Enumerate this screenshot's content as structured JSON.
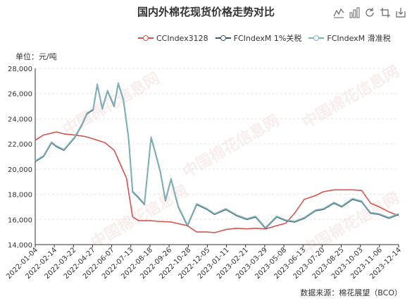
{
  "title": "国内外棉花现货价格走势对比",
  "unit_label": "单位：元/吨",
  "source_label": "数据来源：棉花展望（BCO）",
  "watermark_text": "中国棉花信息网",
  "toolbar": {
    "icons": [
      "line-chart-icon",
      "bar-chart-icon",
      "refresh-icon",
      "restore-icon",
      "save-image-icon"
    ]
  },
  "chart_data": {
    "type": "line",
    "title": "国内外棉花现货价格走势对比",
    "ylabel": "单位：元/吨",
    "ylim": [
      14000,
      28000
    ],
    "yticks": [
      14000,
      16000,
      18000,
      20000,
      22000,
      24000,
      26000,
      28000
    ],
    "ytick_labels": [
      "14,000",
      "16,000",
      "18,000",
      "20,000",
      "22,000",
      "24,000",
      "26,000",
      "28,000"
    ],
    "xlim": [
      "2022-01-04",
      "2023-12-14"
    ],
    "xtick_labels": [
      "2022-01-04",
      "2022-02-14",
      "2022-03-22",
      "2022-04-27",
      "2022-06-07",
      "2022-07-13",
      "2022-08-18",
      "2022-09-26",
      "2022-10-28",
      "2022-12-05",
      "2023-01-11",
      "2023-02-21",
      "2023-03-29",
      "2023-05-08",
      "2023-06-13",
      "2023-07-20",
      "2023-08-25",
      "2023-10-03",
      "2023-11-06",
      "2023-12-14"
    ],
    "grid": true,
    "legend_position": "top",
    "series": [
      {
        "name": "CCIndex3128",
        "color": "#d9534f",
        "points": [
          [
            "2022-01-04",
            22300
          ],
          [
            "2022-01-20",
            22700
          ],
          [
            "2022-02-14",
            22950
          ],
          [
            "2022-03-01",
            22800
          ],
          [
            "2022-03-22",
            22700
          ],
          [
            "2022-04-10",
            22600
          ],
          [
            "2022-04-27",
            22400
          ],
          [
            "2022-05-20",
            22100
          ],
          [
            "2022-06-07",
            21500
          ],
          [
            "2022-06-20",
            20300
          ],
          [
            "2022-07-01",
            19300
          ],
          [
            "2022-07-13",
            16200
          ],
          [
            "2022-07-25",
            15900
          ],
          [
            "2022-08-18",
            15900
          ],
          [
            "2022-09-01",
            15850
          ],
          [
            "2022-09-26",
            15800
          ],
          [
            "2022-10-28",
            15500
          ],
          [
            "2022-11-15",
            15000
          ],
          [
            "2022-12-05",
            15000
          ],
          [
            "2022-12-20",
            14950
          ],
          [
            "2023-01-11",
            15200
          ],
          [
            "2023-02-01",
            15300
          ],
          [
            "2023-02-21",
            15250
          ],
          [
            "2023-03-10",
            15300
          ],
          [
            "2023-03-29",
            15250
          ],
          [
            "2023-04-20",
            15500
          ],
          [
            "2023-05-08",
            15700
          ],
          [
            "2023-05-25",
            16500
          ],
          [
            "2023-06-13",
            17600
          ],
          [
            "2023-07-05",
            17900
          ],
          [
            "2023-07-20",
            18200
          ],
          [
            "2023-08-10",
            18350
          ],
          [
            "2023-08-25",
            18350
          ],
          [
            "2023-09-15",
            18350
          ],
          [
            "2023-10-03",
            18300
          ],
          [
            "2023-10-20",
            17300
          ],
          [
            "2023-11-06",
            17000
          ],
          [
            "2023-11-25",
            16600
          ],
          [
            "2023-12-14",
            16300
          ]
        ]
      },
      {
        "name": "FCIndexM 1%关税",
        "color": "#3d5566",
        "points": [
          [
            "2022-01-04",
            20600
          ],
          [
            "2022-01-20",
            21000
          ],
          [
            "2022-02-05",
            22100
          ],
          [
            "2022-02-14",
            21800
          ],
          [
            "2022-03-01",
            21500
          ],
          [
            "2022-03-22",
            22500
          ],
          [
            "2022-04-05",
            23500
          ],
          [
            "2022-04-15",
            24400
          ],
          [
            "2022-04-27",
            24700
          ],
          [
            "2022-05-05",
            26700
          ],
          [
            "2022-05-15",
            24800
          ],
          [
            "2022-05-25",
            26200
          ],
          [
            "2022-06-07",
            25000
          ],
          [
            "2022-06-15",
            26800
          ],
          [
            "2022-06-25",
            25500
          ],
          [
            "2022-07-05",
            22500
          ],
          [
            "2022-07-13",
            18200
          ],
          [
            "2022-07-25",
            17700
          ],
          [
            "2022-08-05",
            17200
          ],
          [
            "2022-08-18",
            22500
          ],
          [
            "2022-08-25",
            21500
          ],
          [
            "2022-09-05",
            19800
          ],
          [
            "2022-09-15",
            17500
          ],
          [
            "2022-09-26",
            19200
          ],
          [
            "2022-10-10",
            17000
          ],
          [
            "2022-10-28",
            15500
          ],
          [
            "2022-11-15",
            17200
          ],
          [
            "2022-12-05",
            16800
          ],
          [
            "2022-12-20",
            16400
          ],
          [
            "2023-01-11",
            16800
          ],
          [
            "2023-02-01",
            16300
          ],
          [
            "2023-02-21",
            16000
          ],
          [
            "2023-03-10",
            16200
          ],
          [
            "2023-03-29",
            15300
          ],
          [
            "2023-04-20",
            16200
          ],
          [
            "2023-05-08",
            15900
          ],
          [
            "2023-05-25",
            15800
          ],
          [
            "2023-06-13",
            16100
          ],
          [
            "2023-07-05",
            16700
          ],
          [
            "2023-07-20",
            16800
          ],
          [
            "2023-08-10",
            17300
          ],
          [
            "2023-08-25",
            17000
          ],
          [
            "2023-09-15",
            17600
          ],
          [
            "2023-10-03",
            17400
          ],
          [
            "2023-10-20",
            16500
          ],
          [
            "2023-11-06",
            16400
          ],
          [
            "2023-11-25",
            16100
          ],
          [
            "2023-12-14",
            16400
          ]
        ]
      },
      {
        "name": "FCIndexM 滑准税",
        "color": "#7fb3bd",
        "points": [
          [
            "2022-01-04",
            20650
          ],
          [
            "2022-01-20",
            21050
          ],
          [
            "2022-02-05",
            22150
          ],
          [
            "2022-02-14",
            21850
          ],
          [
            "2022-03-01",
            21550
          ],
          [
            "2022-03-22",
            22550
          ],
          [
            "2022-04-05",
            23550
          ],
          [
            "2022-04-15",
            24450
          ],
          [
            "2022-04-27",
            24750
          ],
          [
            "2022-05-05",
            26750
          ],
          [
            "2022-05-15",
            24850
          ],
          [
            "2022-05-25",
            26250
          ],
          [
            "2022-06-07",
            25050
          ],
          [
            "2022-06-15",
            26850
          ],
          [
            "2022-06-25",
            25550
          ],
          [
            "2022-07-05",
            22550
          ],
          [
            "2022-07-13",
            18250
          ],
          [
            "2022-07-25",
            17750
          ],
          [
            "2022-08-05",
            17250
          ],
          [
            "2022-08-18",
            22550
          ],
          [
            "2022-08-25",
            21550
          ],
          [
            "2022-09-05",
            19850
          ],
          [
            "2022-09-15",
            17550
          ],
          [
            "2022-09-26",
            19250
          ],
          [
            "2022-10-10",
            17050
          ],
          [
            "2022-10-28",
            15550
          ],
          [
            "2022-11-15",
            17250
          ],
          [
            "2022-12-05",
            16850
          ],
          [
            "2022-12-20",
            16450
          ],
          [
            "2023-01-11",
            16850
          ],
          [
            "2023-02-01",
            16350
          ],
          [
            "2023-02-21",
            16050
          ],
          [
            "2023-03-10",
            16250
          ],
          [
            "2023-03-29",
            15350
          ],
          [
            "2023-04-20",
            16250
          ],
          [
            "2023-05-08",
            15950
          ],
          [
            "2023-05-25",
            15850
          ],
          [
            "2023-06-13",
            16150
          ],
          [
            "2023-07-05",
            16750
          ],
          [
            "2023-07-20",
            16850
          ],
          [
            "2023-08-10",
            17350
          ],
          [
            "2023-08-25",
            17050
          ],
          [
            "2023-09-15",
            17650
          ],
          [
            "2023-10-03",
            17450
          ],
          [
            "2023-10-20",
            16550
          ],
          [
            "2023-11-06",
            16450
          ],
          [
            "2023-11-25",
            16150
          ],
          [
            "2023-12-14",
            16450
          ]
        ]
      }
    ]
  }
}
